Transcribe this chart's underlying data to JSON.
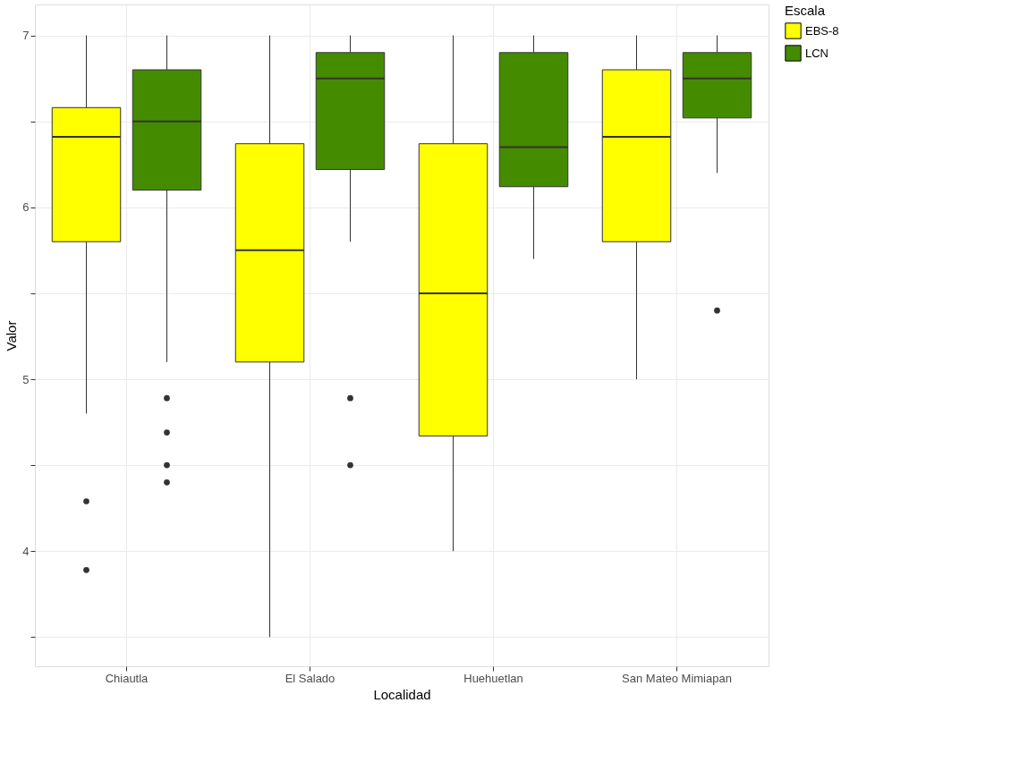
{
  "chart_data": {
    "type": "box",
    "xlabel": "Localidad",
    "ylabel": "Valor",
    "legend_title": "Escala",
    "legend": "right",
    "grid": true,
    "categories": [
      "Chiautla",
      "El Salado",
      "Huehuetlan",
      "San Mateo Mimiapan"
    ],
    "ylim": [
      3.33,
      7.18
    ],
    "yticks": [
      {
        "value": 3.5,
        "label": null
      },
      4,
      {
        "value": 4.5,
        "label": null
      },
      5,
      {
        "value": 5.5,
        "label": null
      },
      6,
      {
        "value": 6.5,
        "label": null
      },
      7
    ],
    "series": [
      {
        "name": "EBS-8",
        "color": "#ffff00",
        "boxes": [
          {
            "low": 4.8,
            "q1": 5.8,
            "median": 6.41,
            "q3": 6.58,
            "high": 7,
            "outliers": [
              4.29,
              3.89
            ]
          },
          {
            "low": 3.5,
            "q1": 5.1,
            "median": 5.75,
            "q3": 6.37,
            "high": 7
          },
          {
            "low": 4.0,
            "q1": 4.67,
            "median": 5.5,
            "q3": 6.37,
            "high": 7
          },
          {
            "low": 5.0,
            "q1": 5.8,
            "median": 6.41,
            "q3": 6.8,
            "high": 7
          }
        ]
      },
      {
        "name": "LCN",
        "color": "#458b00",
        "boxes": [
          {
            "low": 5.1,
            "q1": 6.1,
            "median": 6.5,
            "q3": 6.8,
            "high": 7,
            "outliers": [
              4.89,
              4.69,
              4.5,
              4.4
            ]
          },
          {
            "low": 5.8,
            "q1": 6.22,
            "median": 6.75,
            "q3": 6.9,
            "high": 7,
            "outliers": [
              4.89,
              4.5
            ]
          },
          {
            "low": 5.7,
            "q1": 6.12,
            "median": 6.35,
            "q3": 6.9,
            "high": 7
          },
          {
            "low": 6.2,
            "q1": 6.52,
            "median": 6.75,
            "q3": 6.9,
            "high": 7,
            "outliers": [
              5.4
            ]
          }
        ]
      }
    ]
  }
}
